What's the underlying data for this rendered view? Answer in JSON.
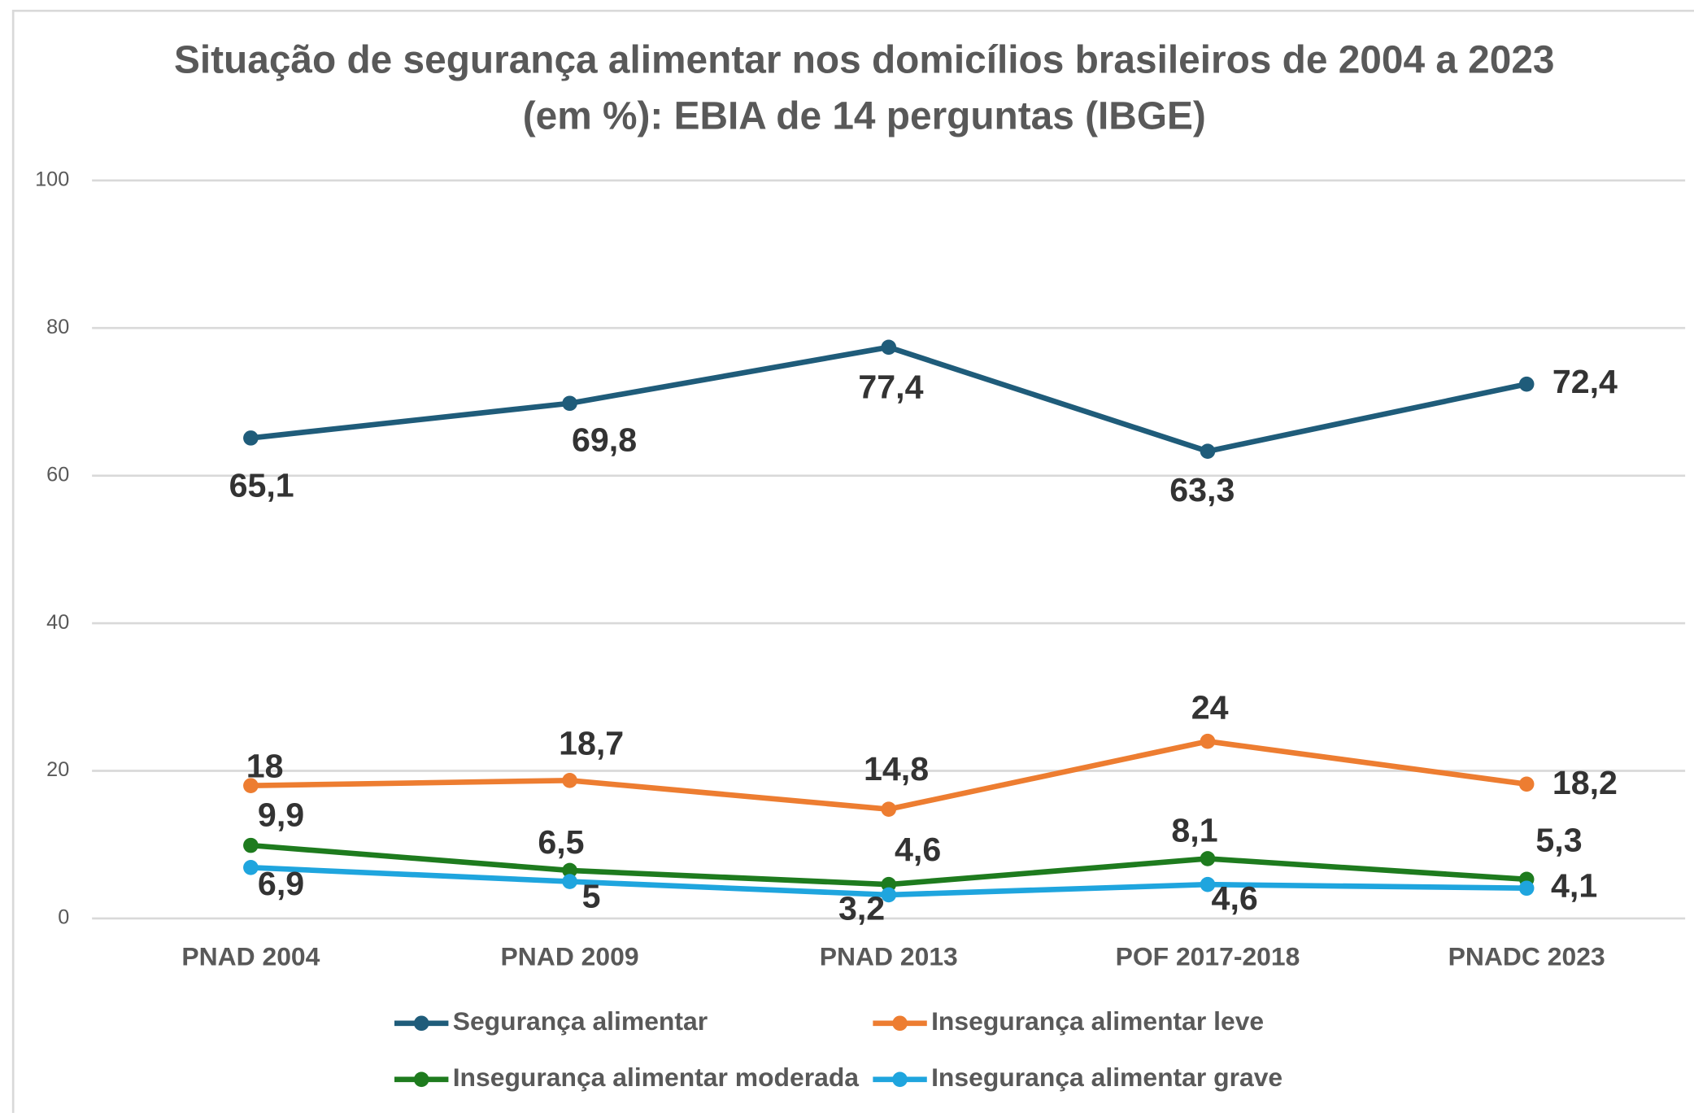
{
  "chart_data": {
    "type": "line",
    "title": [
      "Situação de segurança alimentar nos domicílios brasileiros de 2004 a 2023",
      "(em %): EBIA de 14 perguntas (IBGE)"
    ],
    "categories": [
      "PNAD 2004",
      "PNAD 2009",
      "PNAD 2013",
      "POF 2017-2018",
      "PNADC 2023"
    ],
    "series": [
      {
        "name": "Segurança alimentar",
        "color": "#1f5c7a",
        "values": [
          65.1,
          69.8,
          77.4,
          63.3,
          72.4
        ],
        "value_labels": [
          "65,1",
          "69,8",
          "77,4",
          "63,3",
          "72,4"
        ]
      },
      {
        "name": "Insegurança alimentar leve",
        "color": "#ed7d31",
        "values": [
          18,
          18.7,
          14.8,
          24,
          18.2
        ],
        "value_labels": [
          "18",
          "18,7",
          "14,8",
          "24",
          "18,2"
        ]
      },
      {
        "name": "Insegurança alimentar moderada",
        "color": "#1e7b1e",
        "values": [
          9.9,
          6.5,
          4.6,
          8.1,
          5.3
        ],
        "value_labels": [
          "9,9",
          "6,5",
          "4,6",
          "8,1",
          "5,3"
        ]
      },
      {
        "name": "Insegurança alimentar grave",
        "color": "#1fa5de",
        "values": [
          6.9,
          5,
          3.2,
          4.6,
          4.1
        ],
        "value_labels": [
          "6,9",
          "5",
          "3,2",
          "4,6",
          "4,1"
        ]
      }
    ],
    "ylim": [
      0,
      100
    ],
    "yticks": [
      0,
      20,
      40,
      60,
      80,
      100
    ],
    "grid": true,
    "legend": "bottom"
  }
}
